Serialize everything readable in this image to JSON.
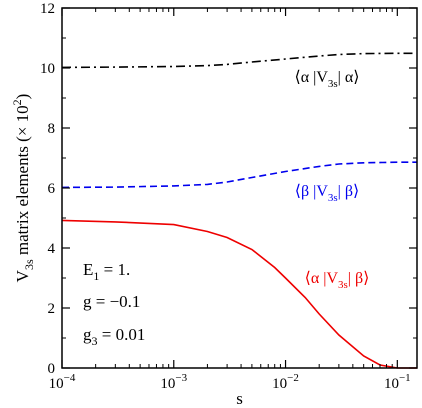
{
  "chart_data": {
    "type": "line",
    "xscale": "log",
    "xlim": [
      0.0001,
      0.15
    ],
    "ylim": [
      0,
      12
    ],
    "xlabel": "s",
    "ylabel": "V",
    "ylabel_sub": "3s",
    "ylabel_rest": " matrix elements (× 10",
    "ylabel_sup": "2",
    "ylabel_end": ")",
    "x_ticks": [
      0.0001,
      0.001,
      0.01,
      0.1
    ],
    "x_tick_labels": [
      {
        "base": "10",
        "exp": "−4"
      },
      {
        "base": "10",
        "exp": "−3"
      },
      {
        "base": "10",
        "exp": "−2"
      },
      {
        "base": "10",
        "exp": "−1"
      }
    ],
    "y_ticks": [
      0,
      2,
      4,
      6,
      8,
      10,
      12
    ],
    "grid": false,
    "series": [
      {
        "label_parts": [
          "⟨α |V",
          "3s",
          "| α⟩"
        ],
        "color": "#000000",
        "dash": "dashdot",
        "points": [
          [
            0.0001,
            10.02
          ],
          [
            0.0003,
            10.03
          ],
          [
            0.001,
            10.05
          ],
          [
            0.002,
            10.08
          ],
          [
            0.003,
            10.12
          ],
          [
            0.005,
            10.2
          ],
          [
            0.01,
            10.3
          ],
          [
            0.02,
            10.4
          ],
          [
            0.03,
            10.45
          ],
          [
            0.05,
            10.48
          ],
          [
            0.1,
            10.49
          ],
          [
            0.15,
            10.49
          ]
        ]
      },
      {
        "label_parts": [
          "⟨β |V",
          "3s",
          "| β⟩"
        ],
        "color": "#0000ee",
        "dash": "dashed",
        "points": [
          [
            0.0001,
            6.02
          ],
          [
            0.0003,
            6.03
          ],
          [
            0.001,
            6.07
          ],
          [
            0.002,
            6.12
          ],
          [
            0.003,
            6.2
          ],
          [
            0.005,
            6.35
          ],
          [
            0.01,
            6.55
          ],
          [
            0.02,
            6.72
          ],
          [
            0.03,
            6.8
          ],
          [
            0.05,
            6.84
          ],
          [
            0.1,
            6.86
          ],
          [
            0.15,
            6.86
          ]
        ]
      },
      {
        "label_parts": [
          "⟨α |V",
          "3s",
          "| β⟩"
        ],
        "color": "#ee0000",
        "dash": "solid",
        "points": [
          [
            0.0001,
            4.92
          ],
          [
            0.0003,
            4.87
          ],
          [
            0.001,
            4.78
          ],
          [
            0.002,
            4.55
          ],
          [
            0.003,
            4.35
          ],
          [
            0.005,
            3.95
          ],
          [
            0.008,
            3.35
          ],
          [
            0.01,
            3.0
          ],
          [
            0.015,
            2.35
          ],
          [
            0.02,
            1.8
          ],
          [
            0.03,
            1.1
          ],
          [
            0.05,
            0.4
          ],
          [
            0.07,
            0.1
          ],
          [
            0.1,
            0.0
          ],
          [
            0.15,
            0.0
          ]
        ]
      }
    ],
    "params": [
      {
        "base": "E",
        "sub": "1",
        "rest": " = 1."
      },
      {
        "base": "g",
        "sub": "",
        "rest": " = −0.1"
      },
      {
        "base": "g",
        "sub": "3",
        "rest": " = 0.01"
      }
    ]
  }
}
